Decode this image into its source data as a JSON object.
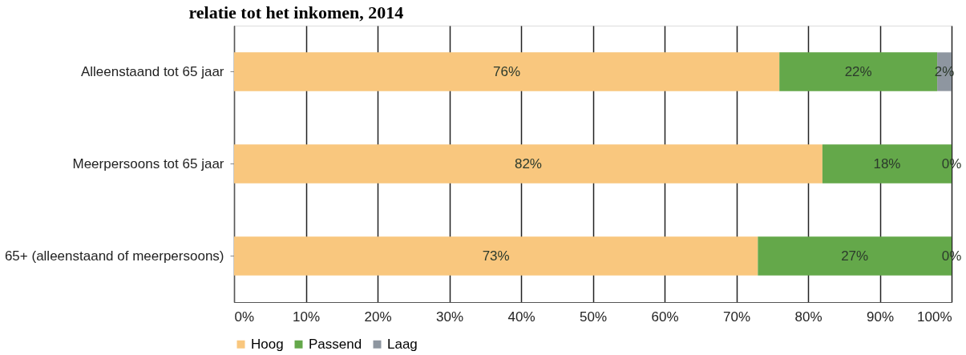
{
  "chart_data": {
    "type": "bar",
    "orientation": "horizontal",
    "stacked": true,
    "title": "relatie tot het inkomen, 2014",
    "categories": [
      "Alleenstaand tot 65 jaar",
      "Meerpersoons tot 65 jaar",
      "65+ (alleenstaand of meerpersoons)"
    ],
    "series": [
      {
        "name": "Hoog",
        "color": "#f9c77e",
        "values": [
          76,
          82,
          73
        ],
        "value_labels": [
          "76%",
          "82%",
          "73%"
        ]
      },
      {
        "name": "Passend",
        "color": "#64a84a",
        "values": [
          22,
          18,
          27
        ],
        "value_labels": [
          "22%",
          "18%",
          "27%"
        ]
      },
      {
        "name": "Laag",
        "color": "#8e96a0",
        "values": [
          2,
          0,
          0
        ],
        "value_labels": [
          "2%",
          "0%",
          "0%"
        ]
      }
    ],
    "xlim": [
      0,
      100
    ],
    "xticks": [
      {
        "value": 0,
        "label": "0%"
      },
      {
        "value": 10,
        "label": "10%"
      },
      {
        "value": 20,
        "label": "20%"
      },
      {
        "value": 30,
        "label": "30%"
      },
      {
        "value": 40,
        "label": "40%"
      },
      {
        "value": 50,
        "label": "50%"
      },
      {
        "value": 60,
        "label": "60%"
      },
      {
        "value": 70,
        "label": "70%"
      },
      {
        "value": 80,
        "label": "80%"
      },
      {
        "value": 90,
        "label": "90%"
      },
      {
        "value": 100,
        "label": "100%"
      }
    ],
    "grid": "x",
    "legend": "bottom"
  }
}
